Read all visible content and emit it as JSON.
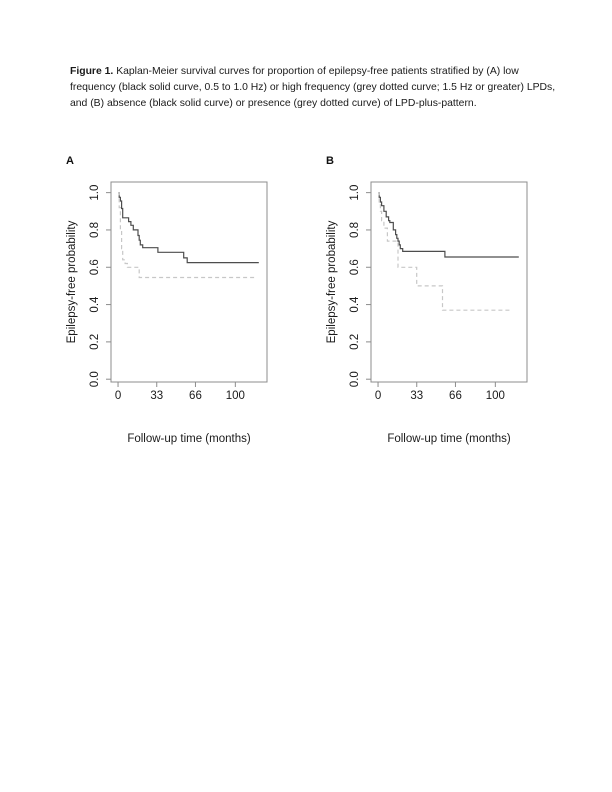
{
  "caption": {
    "label": "Figure 1.",
    "text": " Kaplan-Meier survival curves for proportion of epilepsy-free patients stratified by (A) low frequency (black solid curve, 0.5 to 1.0 Hz) or high frequency (grey dotted curve; 1.5 Hz or greater) LPDs, and (B) absence (black solid curve) or presence (grey dotted curve) of LPD-plus-pattern."
  },
  "panels": [
    {
      "letter": "A"
    },
    {
      "letter": "B"
    }
  ],
  "colors": {
    "solid_curve": "#4d4d4d",
    "dotted_curve": "#c7c7c7",
    "axis": "#8c8c8c",
    "text": "#1a1a1a"
  },
  "chart_data": [
    {
      "type": "line",
      "panel": "A",
      "title": "",
      "xlabel": "Follow-up time (months)",
      "ylabel": "Epilepsy-free probability",
      "xlim": [
        -6,
        127
      ],
      "ylim": [
        -0.015,
        1.057
      ],
      "xticks": [
        0,
        33,
        66,
        100
      ],
      "yticks": [
        "0.0",
        "0.2",
        "0.4",
        "0.6",
        "0.8",
        "1.0"
      ],
      "grid": false,
      "legend": "none",
      "step": true,
      "series": [
        {
          "name": "Low frequency LPDs (0.5 to 1.0 Hz)",
          "style": "solid",
          "color": "#4d4d4d",
          "points": [
            [
              0,
              1.0
            ],
            [
              1,
              0.975
            ],
            [
              2,
              0.955
            ],
            [
              3,
              0.915
            ],
            [
              4,
              0.865
            ],
            [
              9,
              0.845
            ],
            [
              11,
              0.825
            ],
            [
              13,
              0.8
            ],
            [
              17,
              0.77
            ],
            [
              18,
              0.745
            ],
            [
              19,
              0.72
            ],
            [
              21,
              0.705
            ],
            [
              34,
              0.68
            ],
            [
              56,
              0.65
            ],
            [
              59,
              0.625
            ],
            [
              120,
              0.625
            ]
          ]
        },
        {
          "name": "High frequency LPDs (1.5 Hz or greater)",
          "style": "dashed",
          "color": "#c7c7c7",
          "points": [
            [
              0,
              1.0
            ],
            [
              1,
              0.92
            ],
            [
              2,
              0.8
            ],
            [
              3,
              0.7
            ],
            [
              4,
              0.64
            ],
            [
              6,
              0.62
            ],
            [
              8,
              0.6
            ],
            [
              18,
              0.545
            ],
            [
              117,
              0.545
            ]
          ]
        }
      ]
    },
    {
      "type": "line",
      "panel": "B",
      "title": "",
      "xlabel": "Follow-up time (months)",
      "ylabel": "Epilepsy-free probability",
      "xlim": [
        -6,
        127
      ],
      "ylim": [
        -0.015,
        1.057
      ],
      "xticks": [
        0,
        33,
        66,
        100
      ],
      "yticks": [
        "0.0",
        "0.2",
        "0.4",
        "0.6",
        "0.8",
        "1.0"
      ],
      "grid": false,
      "legend": "none",
      "step": true,
      "series": [
        {
          "name": "LPD-plus pattern absent",
          "style": "solid",
          "color": "#4d4d4d",
          "points": [
            [
              0,
              1.0
            ],
            [
              1,
              0.975
            ],
            [
              2,
              0.95
            ],
            [
              3,
              0.93
            ],
            [
              5,
              0.9
            ],
            [
              7,
              0.87
            ],
            [
              9,
              0.85
            ],
            [
              10,
              0.84
            ],
            [
              13,
              0.8
            ],
            [
              15,
              0.775
            ],
            [
              16,
              0.755
            ],
            [
              17,
              0.74
            ],
            [
              18,
              0.72
            ],
            [
              19,
              0.7
            ],
            [
              21,
              0.685
            ],
            [
              57,
              0.655
            ],
            [
              120,
              0.655
            ]
          ]
        },
        {
          "name": "LPD-plus pattern present",
          "style": "dashed",
          "color": "#c7c7c7",
          "points": [
            [
              0,
              1.0
            ],
            [
              1,
              0.95
            ],
            [
              2,
              0.9
            ],
            [
              3,
              0.85
            ],
            [
              5,
              0.81
            ],
            [
              8,
              0.74
            ],
            [
              17,
              0.6
            ],
            [
              33,
              0.5
            ],
            [
              55,
              0.37
            ],
            [
              112,
              0.37
            ]
          ]
        }
      ]
    }
  ]
}
